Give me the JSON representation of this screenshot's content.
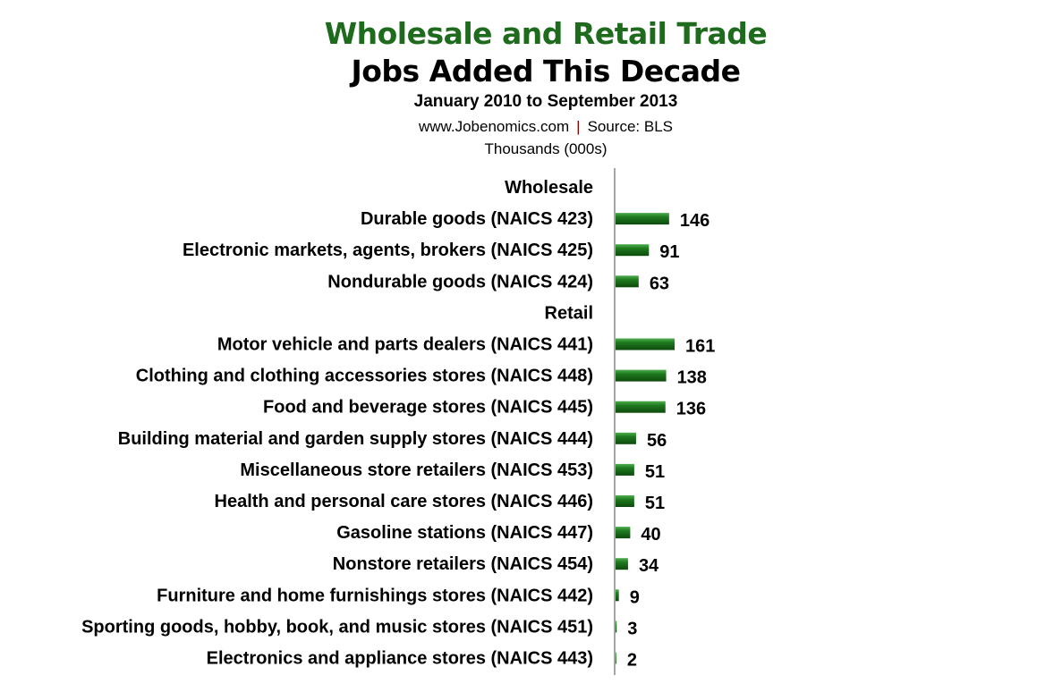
{
  "header": {
    "title": "Wholesale and Retail Trade",
    "subtitle": "Jobs Added This Decade",
    "period": "January  2010 to September 2013",
    "website": "www.Jobenomics.com",
    "separator": "|",
    "source": "Source: BLS",
    "units": "Thousands (000s)"
  },
  "chart_data": {
    "type": "bar",
    "orientation": "horizontal",
    "title": "Wholesale and Retail Trade — Jobs Added This Decade",
    "xlabel": "",
    "ylabel": "",
    "units": "Thousands (000s)",
    "bar_color": "#1f7a1f",
    "categories": [
      "Wholesale",
      "Durable goods  (NAICS 423)",
      "Electronic markets, agents, brokers  (NAICS 425)",
      "Nondurable goods  (NAICS 424)",
      "Retail",
      "Motor vehicle and parts dealers  (NAICS 441)",
      "Clothing and clothing accessories stores (NAICS 448)",
      "Food and beverage stores (NAICS 445)",
      "Building material and garden supply stores (NAICS 444)",
      "Miscellaneous store retailers (NAICS 453)",
      "Health and personal care stores (NAICS 446)",
      "Gasoline stations (NAICS 447)",
      "Nonstore retailers (NAICS 454)",
      "Furniture and home furnishings stores  (NAICS 442)",
      "Sporting goods, hobby, book, and music stores (NAICS 451)",
      "Electronics and appliance stores  (NAICS 443)"
    ],
    "values": [
      null,
      146,
      91,
      63,
      null,
      161,
      138,
      136,
      56,
      51,
      51,
      40,
      34,
      9,
      3,
      2
    ],
    "xlim": [
      0,
      161
    ],
    "grid": false,
    "legend": "none"
  }
}
